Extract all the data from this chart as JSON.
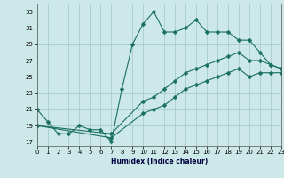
{
  "xlabel": "Humidex (Indice chaleur)",
  "background_color": "#cce8e8",
  "grid_color": "#aacccc",
  "line_color": "#1a7060",
  "xlim": [
    0,
    23
  ],
  "ylim": [
    16.5,
    34
  ],
  "yticks": [
    17,
    19,
    21,
    23,
    25,
    27,
    29,
    31,
    33
  ],
  "xticks": [
    0,
    1,
    2,
    3,
    4,
    5,
    6,
    7,
    8,
    9,
    10,
    11,
    12,
    13,
    14,
    15,
    16,
    17,
    18,
    19,
    20,
    21,
    22,
    23
  ],
  "line1_x": [
    0,
    1,
    2,
    3,
    4,
    5,
    6,
    7,
    8,
    9,
    10,
    11,
    12,
    13,
    14,
    15,
    16,
    17,
    18,
    19,
    20,
    21,
    22,
    23
  ],
  "line1_y": [
    21.0,
    19.5,
    18.0,
    18.0,
    19.0,
    18.5,
    18.5,
    17.0,
    23.5,
    29.0,
    31.5,
    33.0,
    30.5,
    30.5,
    31.0,
    32.0,
    30.5,
    30.5,
    30.5,
    29.5,
    29.5,
    28.0,
    26.5,
    26.0
  ],
  "line2_x": [
    0,
    7,
    10,
    11,
    12,
    13,
    14,
    15,
    16,
    17,
    18,
    19,
    20,
    21,
    22,
    23
  ],
  "line2_y": [
    19.0,
    18.0,
    22.0,
    22.5,
    23.5,
    24.5,
    25.5,
    26.0,
    26.5,
    27.0,
    27.5,
    28.0,
    27.0,
    27.0,
    26.5,
    26.0
  ],
  "line3_x": [
    0,
    7,
    10,
    11,
    12,
    13,
    14,
    15,
    16,
    17,
    18,
    19,
    20,
    21,
    22,
    23
  ],
  "line3_y": [
    19.0,
    17.5,
    20.5,
    21.0,
    21.5,
    22.5,
    23.5,
    24.0,
    24.5,
    25.0,
    25.5,
    26.0,
    25.0,
    25.5,
    25.5,
    25.5
  ]
}
